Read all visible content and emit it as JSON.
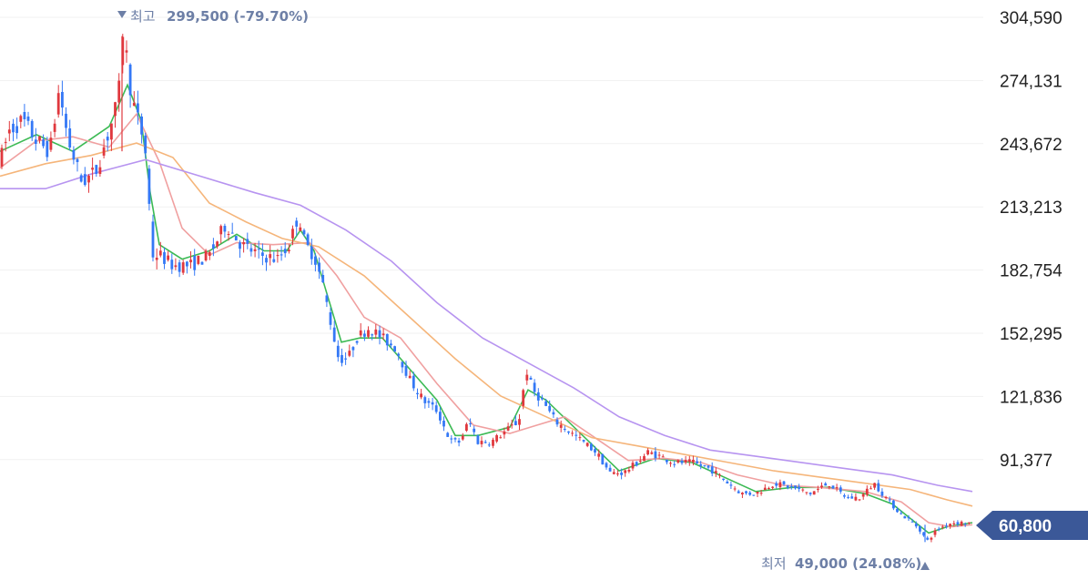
{
  "chart_data": {
    "type": "candlestick",
    "title": "",
    "ylim": [
      49000,
      304590
    ],
    "y_ticks": [
      "304,590",
      "274,131",
      "243,672",
      "213,213",
      "182,754",
      "152,295",
      "121,836",
      "91,377"
    ],
    "current_price": "60,800",
    "high_annotation": {
      "label": "최고",
      "value": "299,500 (-79.70%)"
    },
    "low_annotation": {
      "label": "최저",
      "value": "49,000 (24.08%)"
    },
    "price_path": [
      [
        0,
        235000
      ],
      [
        10,
        250000
      ],
      [
        25,
        255000
      ],
      [
        40,
        245000
      ],
      [
        55,
        240000
      ],
      [
        65,
        270000
      ],
      [
        75,
        245000
      ],
      [
        90,
        225000
      ],
      [
        105,
        230000
      ],
      [
        120,
        250000
      ],
      [
        130,
        265000
      ],
      [
        135,
        299500
      ],
      [
        145,
        265000
      ],
      [
        155,
        250000
      ],
      [
        162,
        235000
      ],
      [
        166,
        190000
      ],
      [
        175,
        190000
      ],
      [
        190,
        185000
      ],
      [
        210,
        185000
      ],
      [
        230,
        190000
      ],
      [
        248,
        205000
      ],
      [
        265,
        195000
      ],
      [
        285,
        190000
      ],
      [
        305,
        188000
      ],
      [
        318,
        195000
      ],
      [
        328,
        210000
      ],
      [
        335,
        195000
      ],
      [
        345,
        190000
      ],
      [
        355,
        175000
      ],
      [
        362,
        160000
      ],
      [
        372,
        140000
      ],
      [
        382,
        140000
      ],
      [
        392,
        150000
      ],
      [
        405,
        155000
      ],
      [
        420,
        150000
      ],
      [
        435,
        145000
      ],
      [
        450,
        130000
      ],
      [
        465,
        120000
      ],
      [
        480,
        115000
      ],
      [
        495,
        100000
      ],
      [
        505,
        100000
      ],
      [
        515,
        110000
      ],
      [
        525,
        100000
      ],
      [
        540,
        100000
      ],
      [
        555,
        105000
      ],
      [
        570,
        110000
      ],
      [
        578,
        135000
      ],
      [
        585,
        125000
      ],
      [
        595,
        120000
      ],
      [
        610,
        110000
      ],
      [
        625,
        105000
      ],
      [
        640,
        100000
      ],
      [
        655,
        95000
      ],
      [
        670,
        85000
      ],
      [
        685,
        85000
      ],
      [
        700,
        90000
      ],
      [
        712,
        95000
      ],
      [
        725,
        93000
      ],
      [
        740,
        90000
      ],
      [
        760,
        90000
      ],
      [
        780,
        87000
      ],
      [
        800,
        80000
      ],
      [
        815,
        75000
      ],
      [
        830,
        75000
      ],
      [
        850,
        80000
      ],
      [
        870,
        78000
      ],
      [
        890,
        75000
      ],
      [
        910,
        80000
      ],
      [
        930,
        73000
      ],
      [
        945,
        73000
      ],
      [
        960,
        80000
      ],
      [
        975,
        72000
      ],
      [
        990,
        65000
      ],
      [
        1000,
        62000
      ],
      [
        1010,
        58000
      ],
      [
        1018,
        52000
      ],
      [
        1030,
        58000
      ],
      [
        1045,
        61000
      ],
      [
        1058,
        61000
      ],
      [
        1068,
        60800
      ]
    ],
    "ma_lines": [
      {
        "color": "#3cba54",
        "points": [
          [
            0,
            240000
          ],
          [
            40,
            248000
          ],
          [
            80,
            240000
          ],
          [
            120,
            252000
          ],
          [
            140,
            272000
          ],
          [
            155,
            255000
          ],
          [
            165,
            220000
          ],
          [
            175,
            195000
          ],
          [
            200,
            188000
          ],
          [
            230,
            192000
          ],
          [
            260,
            200000
          ],
          [
            290,
            192000
          ],
          [
            315,
            192000
          ],
          [
            330,
            202000
          ],
          [
            345,
            192000
          ],
          [
            360,
            170000
          ],
          [
            375,
            148000
          ],
          [
            395,
            150000
          ],
          [
            420,
            150000
          ],
          [
            450,
            135000
          ],
          [
            480,
            120000
          ],
          [
            500,
            103000
          ],
          [
            525,
            103000
          ],
          [
            560,
            107000
          ],
          [
            580,
            125000
          ],
          [
            600,
            120000
          ],
          [
            640,
            103000
          ],
          [
            680,
            86000
          ],
          [
            720,
            92000
          ],
          [
            760,
            90000
          ],
          [
            800,
            82000
          ],
          [
            830,
            76000
          ],
          [
            870,
            78000
          ],
          [
            910,
            78000
          ],
          [
            950,
            75000
          ],
          [
            980,
            70000
          ],
          [
            1000,
            63000
          ],
          [
            1020,
            56000
          ],
          [
            1040,
            59000
          ],
          [
            1068,
            61000
          ]
        ]
      },
      {
        "color": "#f0a0a0",
        "points": [
          [
            0,
            232000
          ],
          [
            40,
            245000
          ],
          [
            80,
            247000
          ],
          [
            120,
            242000
          ],
          [
            150,
            258000
          ],
          [
            175,
            235000
          ],
          [
            200,
            203000
          ],
          [
            230,
            190000
          ],
          [
            260,
            196000
          ],
          [
            300,
            195000
          ],
          [
            340,
            196000
          ],
          [
            370,
            180000
          ],
          [
            400,
            160000
          ],
          [
            440,
            150000
          ],
          [
            480,
            128000
          ],
          [
            520,
            108000
          ],
          [
            560,
            104000
          ],
          [
            590,
            108000
          ],
          [
            620,
            112000
          ],
          [
            650,
            103000
          ],
          [
            690,
            91000
          ],
          [
            730,
            92000
          ],
          [
            770,
            90000
          ],
          [
            810,
            84000
          ],
          [
            860,
            79000
          ],
          [
            900,
            78000
          ],
          [
            950,
            76000
          ],
          [
            990,
            71000
          ],
          [
            1020,
            61000
          ],
          [
            1045,
            59000
          ],
          [
            1068,
            60000
          ]
        ]
      },
      {
        "color": "#f5b57a",
        "points": [
          [
            0,
            228000
          ],
          [
            50,
            234000
          ],
          [
            100,
            238000
          ],
          [
            150,
            244000
          ],
          [
            190,
            237000
          ],
          [
            230,
            215000
          ],
          [
            270,
            206000
          ],
          [
            310,
            198000
          ],
          [
            350,
            194000
          ],
          [
            400,
            180000
          ],
          [
            450,
            160000
          ],
          [
            500,
            140000
          ],
          [
            550,
            122000
          ],
          [
            600,
            112000
          ],
          [
            650,
            102000
          ],
          [
            700,
            98000
          ],
          [
            750,
            94000
          ],
          [
            800,
            90000
          ],
          [
            850,
            86000
          ],
          [
            900,
            83000
          ],
          [
            950,
            80000
          ],
          [
            1000,
            77000
          ],
          [
            1040,
            72000
          ],
          [
            1068,
            69000
          ]
        ]
      },
      {
        "color": "#b794f0",
        "points": [
          [
            0,
            222000
          ],
          [
            50,
            222000
          ],
          [
            100,
            229000
          ],
          [
            160,
            236000
          ],
          [
            220,
            228000
          ],
          [
            280,
            220000
          ],
          [
            330,
            214000
          ],
          [
            380,
            202000
          ],
          [
            430,
            187000
          ],
          [
            480,
            167000
          ],
          [
            530,
            150000
          ],
          [
            580,
            138000
          ],
          [
            630,
            126000
          ],
          [
            680,
            112000
          ],
          [
            730,
            103000
          ],
          [
            780,
            96000
          ],
          [
            830,
            93000
          ],
          [
            880,
            90000
          ],
          [
            930,
            87000
          ],
          [
            980,
            84000
          ],
          [
            1030,
            79000
          ],
          [
            1068,
            76000
          ]
        ]
      }
    ]
  }
}
